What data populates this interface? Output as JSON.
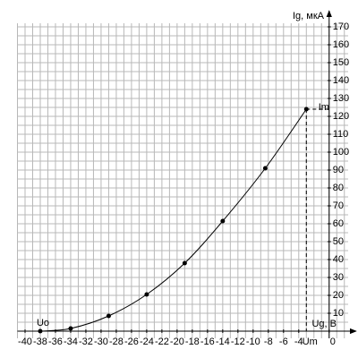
{
  "chart_data": {
    "type": "line",
    "x_label": "Ug, В",
    "y_label": "Ig, мкА",
    "x": [
      -38,
      -34,
      -29,
      -24,
      -19,
      -14,
      -8.4,
      -3
    ],
    "values": [
      0,
      1.5,
      8.5,
      20.5,
      38,
      61.5,
      91,
      124
    ],
    "color": "#000000",
    "xlim": [
      -41,
      2.5
    ],
    "ylim": [
      -4,
      172
    ],
    "xticks": [
      -40,
      -38,
      -36,
      -34,
      -32,
      -30,
      -28,
      -26,
      -24,
      -22,
      -20,
      -18,
      -16,
      -14,
      -12,
      -10,
      -8,
      -6,
      -4,
      0
    ],
    "yticks": [
      10,
      20,
      30,
      40,
      50,
      60,
      70,
      80,
      90,
      100,
      110,
      120,
      130,
      140,
      150,
      160,
      170
    ],
    "grid": {
      "x_step": 1,
      "y_step": 5
    },
    "annotations": {
      "start": "Uo",
      "peak_y": "Im",
      "peak_x": "Um"
    }
  }
}
